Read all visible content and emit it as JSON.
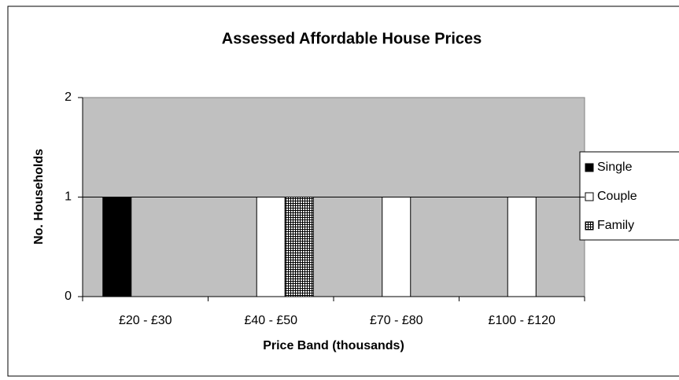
{
  "chart_data": {
    "type": "bar",
    "title": "Assessed Affordable House Prices",
    "x_label": "Price Band (thousands)",
    "y_label": "No. Households",
    "categories": [
      "£20 - £30",
      "£40 - £50",
      "£70 - £80",
      "£100 - £120"
    ],
    "series": [
      {
        "name": "Single",
        "color": "#000000",
        "values": [
          1,
          0,
          0,
          0
        ]
      },
      {
        "name": "Couple",
        "color": "#ffffff",
        "values": [
          0,
          1,
          1,
          1
        ]
      },
      {
        "name": "Family",
        "color": "checkered",
        "values": [
          0,
          1,
          0,
          0
        ]
      }
    ],
    "ylim": [
      0,
      2
    ],
    "yticks": [
      0,
      1,
      2
    ],
    "grid": true,
    "legend": "right"
  }
}
